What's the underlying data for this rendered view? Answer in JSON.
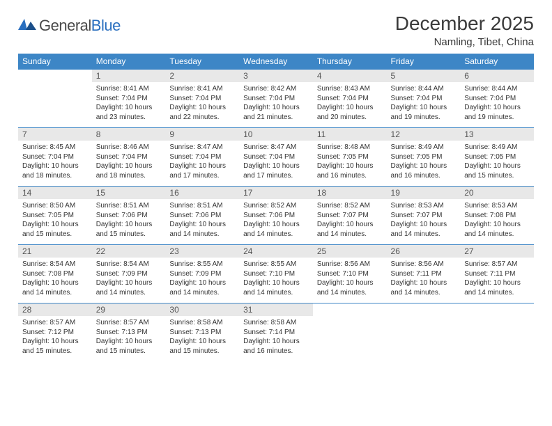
{
  "logo": {
    "text1": "General",
    "text2": "Blue"
  },
  "title": "December 2025",
  "location": "Namling, Tibet, China",
  "colors": {
    "header_bg": "#3d86c6",
    "header_text": "#ffffff",
    "daynum_bg": "#e8e8e8",
    "border": "#3d86c6",
    "text": "#333333",
    "logo_gray": "#4a4a4a",
    "logo_blue": "#2a6fbf"
  },
  "typography": {
    "title_fontsize": 28,
    "location_fontsize": 15,
    "weekday_fontsize": 12,
    "daynum_fontsize": 12,
    "cell_fontsize": 10
  },
  "weekdays": [
    "Sunday",
    "Monday",
    "Tuesday",
    "Wednesday",
    "Thursday",
    "Friday",
    "Saturday"
  ],
  "weeks": [
    [
      null,
      {
        "n": "1",
        "sr": "8:41 AM",
        "ss": "7:04 PM",
        "dl": "10 hours and 23 minutes."
      },
      {
        "n": "2",
        "sr": "8:41 AM",
        "ss": "7:04 PM",
        "dl": "10 hours and 22 minutes."
      },
      {
        "n": "3",
        "sr": "8:42 AM",
        "ss": "7:04 PM",
        "dl": "10 hours and 21 minutes."
      },
      {
        "n": "4",
        "sr": "8:43 AM",
        "ss": "7:04 PM",
        "dl": "10 hours and 20 minutes."
      },
      {
        "n": "5",
        "sr": "8:44 AM",
        "ss": "7:04 PM",
        "dl": "10 hours and 19 minutes."
      },
      {
        "n": "6",
        "sr": "8:44 AM",
        "ss": "7:04 PM",
        "dl": "10 hours and 19 minutes."
      }
    ],
    [
      {
        "n": "7",
        "sr": "8:45 AM",
        "ss": "7:04 PM",
        "dl": "10 hours and 18 minutes."
      },
      {
        "n": "8",
        "sr": "8:46 AM",
        "ss": "7:04 PM",
        "dl": "10 hours and 18 minutes."
      },
      {
        "n": "9",
        "sr": "8:47 AM",
        "ss": "7:04 PM",
        "dl": "10 hours and 17 minutes."
      },
      {
        "n": "10",
        "sr": "8:47 AM",
        "ss": "7:04 PM",
        "dl": "10 hours and 17 minutes."
      },
      {
        "n": "11",
        "sr": "8:48 AM",
        "ss": "7:05 PM",
        "dl": "10 hours and 16 minutes."
      },
      {
        "n": "12",
        "sr": "8:49 AM",
        "ss": "7:05 PM",
        "dl": "10 hours and 16 minutes."
      },
      {
        "n": "13",
        "sr": "8:49 AM",
        "ss": "7:05 PM",
        "dl": "10 hours and 15 minutes."
      }
    ],
    [
      {
        "n": "14",
        "sr": "8:50 AM",
        "ss": "7:05 PM",
        "dl": "10 hours and 15 minutes."
      },
      {
        "n": "15",
        "sr": "8:51 AM",
        "ss": "7:06 PM",
        "dl": "10 hours and 15 minutes."
      },
      {
        "n": "16",
        "sr": "8:51 AM",
        "ss": "7:06 PM",
        "dl": "10 hours and 14 minutes."
      },
      {
        "n": "17",
        "sr": "8:52 AM",
        "ss": "7:06 PM",
        "dl": "10 hours and 14 minutes."
      },
      {
        "n": "18",
        "sr": "8:52 AM",
        "ss": "7:07 PM",
        "dl": "10 hours and 14 minutes."
      },
      {
        "n": "19",
        "sr": "8:53 AM",
        "ss": "7:07 PM",
        "dl": "10 hours and 14 minutes."
      },
      {
        "n": "20",
        "sr": "8:53 AM",
        "ss": "7:08 PM",
        "dl": "10 hours and 14 minutes."
      }
    ],
    [
      {
        "n": "21",
        "sr": "8:54 AM",
        "ss": "7:08 PM",
        "dl": "10 hours and 14 minutes."
      },
      {
        "n": "22",
        "sr": "8:54 AM",
        "ss": "7:09 PM",
        "dl": "10 hours and 14 minutes."
      },
      {
        "n": "23",
        "sr": "8:55 AM",
        "ss": "7:09 PM",
        "dl": "10 hours and 14 minutes."
      },
      {
        "n": "24",
        "sr": "8:55 AM",
        "ss": "7:10 PM",
        "dl": "10 hours and 14 minutes."
      },
      {
        "n": "25",
        "sr": "8:56 AM",
        "ss": "7:10 PM",
        "dl": "10 hours and 14 minutes."
      },
      {
        "n": "26",
        "sr": "8:56 AM",
        "ss": "7:11 PM",
        "dl": "10 hours and 14 minutes."
      },
      {
        "n": "27",
        "sr": "8:57 AM",
        "ss": "7:11 PM",
        "dl": "10 hours and 14 minutes."
      }
    ],
    [
      {
        "n": "28",
        "sr": "8:57 AM",
        "ss": "7:12 PM",
        "dl": "10 hours and 15 minutes."
      },
      {
        "n": "29",
        "sr": "8:57 AM",
        "ss": "7:13 PM",
        "dl": "10 hours and 15 minutes."
      },
      {
        "n": "30",
        "sr": "8:58 AM",
        "ss": "7:13 PM",
        "dl": "10 hours and 15 minutes."
      },
      {
        "n": "31",
        "sr": "8:58 AM",
        "ss": "7:14 PM",
        "dl": "10 hours and 16 minutes."
      },
      null,
      null,
      null
    ]
  ],
  "labels": {
    "sunrise": "Sunrise:",
    "sunset": "Sunset:",
    "daylight": "Daylight:"
  }
}
